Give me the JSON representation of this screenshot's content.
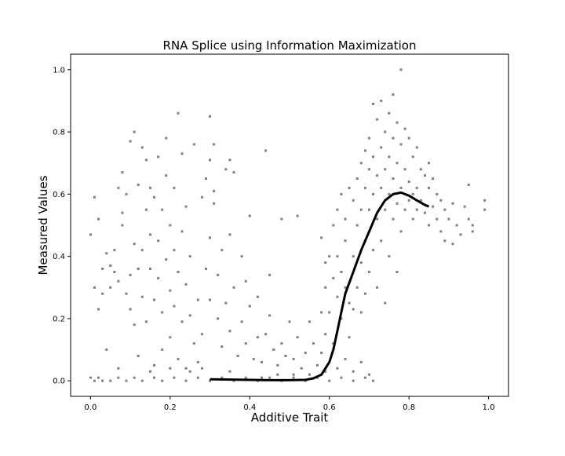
{
  "colors": {
    "background": "#ffffff",
    "points": "#808080",
    "fit_line": "#000000",
    "axes": "#000000"
  },
  "chart_data": {
    "type": "scatter",
    "title": "RNA Splice using Information Maximization",
    "xlabel": "Additive Trait",
    "ylabel": "Measured Values",
    "xlim": [
      -0.05,
      1.05
    ],
    "ylim": [
      -0.05,
      1.05
    ],
    "xticks": [
      0.0,
      0.2,
      0.4,
      0.6,
      0.8,
      1.0
    ],
    "yticks": [
      0.0,
      0.2,
      0.4,
      0.6,
      0.8,
      1.0
    ],
    "xtick_labels": [
      "0.0",
      "0.2",
      "0.4",
      "0.6",
      "0.8",
      "1.0"
    ],
    "ytick_labels": [
      "0.0",
      "0.2",
      "0.4",
      "0.6",
      "0.8",
      "1.0"
    ],
    "grid": false,
    "legend": "none",
    "series": [
      {
        "kind": "scatter",
        "points": [
          [
            0.0,
            0.01
          ],
          [
            0.01,
            0.0
          ],
          [
            0.02,
            0.01
          ],
          [
            0.03,
            0.0
          ],
          [
            0.05,
            0.0
          ],
          [
            0.07,
            0.01
          ],
          [
            0.09,
            0.0
          ],
          [
            0.11,
            0.01
          ],
          [
            0.13,
            0.0
          ],
          [
            0.16,
            0.01
          ],
          [
            0.18,
            0.0
          ],
          [
            0.21,
            0.01
          ],
          [
            0.24,
            0.0
          ],
          [
            0.27,
            0.01
          ],
          [
            0.3,
            0.0
          ],
          [
            0.33,
            0.01
          ],
          [
            0.36,
            0.0
          ],
          [
            0.39,
            0.01
          ],
          [
            0.42,
            0.0
          ],
          [
            0.45,
            0.01
          ],
          [
            0.48,
            0.0
          ],
          [
            0.51,
            0.01
          ],
          [
            0.54,
            0.0
          ],
          [
            0.57,
            0.01
          ],
          [
            0.6,
            0.0
          ],
          [
            0.63,
            0.01
          ],
          [
            0.66,
            0.0
          ],
          [
            0.69,
            0.01
          ],
          [
            0.71,
            0.0
          ],
          [
            0.0,
            0.47
          ],
          [
            0.01,
            0.59
          ],
          [
            0.02,
            0.52
          ],
          [
            0.01,
            0.3
          ],
          [
            0.02,
            0.23
          ],
          [
            0.03,
            0.36
          ],
          [
            0.03,
            0.28
          ],
          [
            0.04,
            0.41
          ],
          [
            0.04,
            0.1
          ],
          [
            0.05,
            0.3
          ],
          [
            0.05,
            0.37
          ],
          [
            0.06,
            0.42
          ],
          [
            0.06,
            0.35
          ],
          [
            0.07,
            0.62
          ],
          [
            0.07,
            0.32
          ],
          [
            0.07,
            0.04
          ],
          [
            0.08,
            0.67
          ],
          [
            0.08,
            0.54
          ],
          [
            0.08,
            0.5
          ],
          [
            0.09,
            0.28
          ],
          [
            0.09,
            0.6
          ],
          [
            0.1,
            0.77
          ],
          [
            0.1,
            0.34
          ],
          [
            0.1,
            0.23
          ],
          [
            0.11,
            0.8
          ],
          [
            0.11,
            0.44
          ],
          [
            0.11,
            0.18
          ],
          [
            0.12,
            0.36
          ],
          [
            0.12,
            0.63
          ],
          [
            0.12,
            0.08
          ],
          [
            0.13,
            0.75
          ],
          [
            0.13,
            0.42
          ],
          [
            0.13,
            0.27
          ],
          [
            0.14,
            0.55
          ],
          [
            0.14,
            0.71
          ],
          [
            0.14,
            0.19
          ],
          [
            0.15,
            0.47
          ],
          [
            0.15,
            0.36
          ],
          [
            0.15,
            0.62
          ],
          [
            0.16,
            0.26
          ],
          [
            0.16,
            0.59
          ],
          [
            0.16,
            0.05
          ],
          [
            0.17,
            0.72
          ],
          [
            0.17,
            0.45
          ],
          [
            0.17,
            0.33
          ],
          [
            0.18,
            0.22
          ],
          [
            0.18,
            0.55
          ],
          [
            0.18,
            0.1
          ],
          [
            0.19,
            0.78
          ],
          [
            0.19,
            0.39
          ],
          [
            0.19,
            0.66
          ],
          [
            0.2,
            0.29
          ],
          [
            0.2,
            0.5
          ],
          [
            0.2,
            0.14
          ],
          [
            0.21,
            0.62
          ],
          [
            0.21,
            0.42
          ],
          [
            0.21,
            0.24
          ],
          [
            0.22,
            0.86
          ],
          [
            0.22,
            0.35
          ],
          [
            0.22,
            0.07
          ],
          [
            0.23,
            0.73
          ],
          [
            0.23,
            0.48
          ],
          [
            0.23,
            0.19
          ],
          [
            0.24,
            0.56
          ],
          [
            0.24,
            0.31
          ],
          [
            0.24,
            0.04
          ],
          [
            0.25,
            0.4
          ],
          [
            0.25,
            0.21
          ],
          [
            0.26,
            0.76
          ],
          [
            0.26,
            0.12
          ],
          [
            0.27,
            0.26
          ],
          [
            0.27,
            0.06
          ],
          [
            0.28,
            0.59
          ],
          [
            0.28,
            0.15
          ],
          [
            0.29,
            0.65
          ],
          [
            0.29,
            0.36
          ],
          [
            0.3,
            0.85
          ],
          [
            0.3,
            0.71
          ],
          [
            0.3,
            0.46
          ],
          [
            0.3,
            0.26
          ],
          [
            0.31,
            0.76
          ],
          [
            0.31,
            0.61
          ],
          [
            0.31,
            0.57
          ],
          [
            0.32,
            0.34
          ],
          [
            0.32,
            0.2
          ],
          [
            0.33,
            0.42
          ],
          [
            0.33,
            0.11
          ],
          [
            0.34,
            0.68
          ],
          [
            0.34,
            0.25
          ],
          [
            0.35,
            0.71
          ],
          [
            0.35,
            0.47
          ],
          [
            0.35,
            0.16
          ],
          [
            0.36,
            0.67
          ],
          [
            0.36,
            0.3
          ],
          [
            0.37,
            0.08
          ],
          [
            0.38,
            0.4
          ],
          [
            0.38,
            0.19
          ],
          [
            0.39,
            0.32
          ],
          [
            0.39,
            0.12
          ],
          [
            0.4,
            0.53
          ],
          [
            0.4,
            0.24
          ],
          [
            0.41,
            0.07
          ],
          [
            0.42,
            0.27
          ],
          [
            0.42,
            0.14
          ],
          [
            0.43,
            0.06
          ],
          [
            0.44,
            0.74
          ],
          [
            0.44,
            0.15
          ],
          [
            0.45,
            0.34
          ],
          [
            0.45,
            0.21
          ],
          [
            0.46,
            0.1
          ],
          [
            0.47,
            0.05
          ],
          [
            0.48,
            0.52
          ],
          [
            0.48,
            0.12
          ],
          [
            0.49,
            0.08
          ],
          [
            0.5,
            0.19
          ],
          [
            0.51,
            0.07
          ],
          [
            0.52,
            0.53
          ],
          [
            0.52,
            0.14
          ],
          [
            0.53,
            0.04
          ],
          [
            0.54,
            0.09
          ],
          [
            0.55,
            0.19
          ],
          [
            0.56,
            0.12
          ],
          [
            0.57,
            0.05
          ],
          [
            0.58,
            0.22
          ],
          [
            0.58,
            0.09
          ],
          [
            0.58,
            0.46
          ],
          [
            0.59,
            0.3
          ],
          [
            0.59,
            0.15
          ],
          [
            0.59,
            0.38
          ],
          [
            0.6,
            0.4
          ],
          [
            0.6,
            0.22
          ],
          [
            0.61,
            0.33
          ],
          [
            0.61,
            0.5
          ],
          [
            0.61,
            0.12
          ],
          [
            0.62,
            0.27
          ],
          [
            0.62,
            0.55
          ],
          [
            0.62,
            0.4
          ],
          [
            0.63,
            0.6
          ],
          [
            0.63,
            0.35
          ],
          [
            0.63,
            0.2
          ],
          [
            0.64,
            0.52
          ],
          [
            0.64,
            0.3
          ],
          [
            0.64,
            0.45
          ],
          [
            0.65,
            0.62
          ],
          [
            0.65,
            0.25
          ],
          [
            0.65,
            0.14
          ],
          [
            0.66,
            0.58
          ],
          [
            0.66,
            0.4
          ],
          [
            0.66,
            0.23
          ],
          [
            0.67,
            0.65
          ],
          [
            0.67,
            0.5
          ],
          [
            0.67,
            0.3
          ],
          [
            0.68,
            0.7
          ],
          [
            0.68,
            0.55
          ],
          [
            0.68,
            0.38
          ],
          [
            0.68,
            0.22
          ],
          [
            0.69,
            0.74
          ],
          [
            0.69,
            0.62
          ],
          [
            0.69,
            0.45
          ],
          [
            0.69,
            0.28
          ],
          [
            0.7,
            0.78
          ],
          [
            0.7,
            0.68
          ],
          [
            0.7,
            0.55
          ],
          [
            0.7,
            0.35
          ],
          [
            0.71,
            0.89
          ],
          [
            0.71,
            0.72
          ],
          [
            0.71,
            0.6
          ],
          [
            0.71,
            0.42
          ],
          [
            0.72,
            0.84
          ],
          [
            0.72,
            0.66
          ],
          [
            0.72,
            0.52
          ],
          [
            0.72,
            0.3
          ],
          [
            0.73,
            0.9
          ],
          [
            0.73,
            0.75
          ],
          [
            0.73,
            0.62
          ],
          [
            0.73,
            0.45
          ],
          [
            0.74,
            0.8
          ],
          [
            0.74,
            0.68
          ],
          [
            0.74,
            0.55
          ],
          [
            0.74,
            0.25
          ],
          [
            0.75,
            0.86
          ],
          [
            0.75,
            0.72
          ],
          [
            0.75,
            0.6
          ],
          [
            0.75,
            0.4
          ],
          [
            0.76,
            0.92
          ],
          [
            0.76,
            0.78
          ],
          [
            0.76,
            0.65
          ],
          [
            0.76,
            0.52
          ],
          [
            0.77,
            0.83
          ],
          [
            0.77,
            0.7
          ],
          [
            0.77,
            0.57
          ],
          [
            0.77,
            0.35
          ],
          [
            0.78,
            1.0
          ],
          [
            0.78,
            0.76
          ],
          [
            0.78,
            0.62
          ],
          [
            0.78,
            0.48
          ],
          [
            0.79,
            0.81
          ],
          [
            0.79,
            0.68
          ],
          [
            0.79,
            0.55
          ],
          [
            0.8,
            0.78
          ],
          [
            0.8,
            0.64
          ],
          [
            0.8,
            0.58
          ],
          [
            0.81,
            0.72
          ],
          [
            0.81,
            0.6
          ],
          [
            0.81,
            0.52
          ],
          [
            0.82,
            0.75
          ],
          [
            0.82,
            0.62
          ],
          [
            0.82,
            0.55
          ],
          [
            0.83,
            0.68
          ],
          [
            0.83,
            0.58
          ],
          [
            0.84,
            0.66
          ],
          [
            0.84,
            0.54
          ],
          [
            0.85,
            0.7
          ],
          [
            0.85,
            0.62
          ],
          [
            0.85,
            0.5
          ],
          [
            0.86,
            0.65
          ],
          [
            0.86,
            0.56
          ],
          [
            0.87,
            0.6
          ],
          [
            0.87,
            0.52
          ],
          [
            0.88,
            0.58
          ],
          [
            0.88,
            0.48
          ],
          [
            0.89,
            0.55
          ],
          [
            0.89,
            0.45
          ],
          [
            0.9,
            0.52
          ],
          [
            0.91,
            0.57
          ],
          [
            0.91,
            0.44
          ],
          [
            0.92,
            0.5
          ],
          [
            0.93,
            0.47
          ],
          [
            0.94,
            0.56
          ],
          [
            0.95,
            0.52
          ],
          [
            0.95,
            0.63
          ],
          [
            0.96,
            0.5
          ],
          [
            0.96,
            0.48
          ],
          [
            0.99,
            0.58
          ],
          [
            0.99,
            0.55
          ],
          [
            0.43,
            0.01
          ],
          [
            0.47,
            0.02
          ],
          [
            0.51,
            0.02
          ],
          [
            0.55,
            0.02
          ],
          [
            0.59,
            0.03
          ],
          [
            0.62,
            0.04
          ],
          [
            0.64,
            0.07
          ],
          [
            0.66,
            0.03
          ],
          [
            0.68,
            0.06
          ],
          [
            0.7,
            0.02
          ],
          [
            0.2,
            0.04
          ],
          [
            0.25,
            0.03
          ],
          [
            0.35,
            0.03
          ],
          [
            0.28,
            0.04
          ],
          [
            0.15,
            0.03
          ]
        ]
      },
      {
        "kind": "line",
        "points": [
          [
            0.3,
            0.005
          ],
          [
            0.35,
            0.004
          ],
          [
            0.4,
            0.003
          ],
          [
            0.45,
            0.002
          ],
          [
            0.5,
            0.002
          ],
          [
            0.54,
            0.003
          ],
          [
            0.56,
            0.008
          ],
          [
            0.58,
            0.02
          ],
          [
            0.6,
            0.06
          ],
          [
            0.61,
            0.1
          ],
          [
            0.62,
            0.16
          ],
          [
            0.63,
            0.22
          ],
          [
            0.64,
            0.28
          ],
          [
            0.66,
            0.35
          ],
          [
            0.68,
            0.42
          ],
          [
            0.7,
            0.48
          ],
          [
            0.72,
            0.54
          ],
          [
            0.74,
            0.58
          ],
          [
            0.76,
            0.6
          ],
          [
            0.78,
            0.605
          ],
          [
            0.8,
            0.595
          ],
          [
            0.82,
            0.58
          ],
          [
            0.84,
            0.565
          ],
          [
            0.85,
            0.56
          ]
        ]
      }
    ]
  }
}
